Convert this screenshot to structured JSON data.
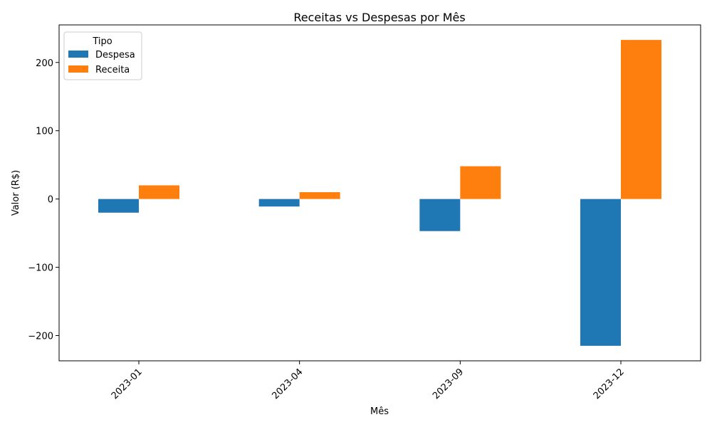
{
  "chart_data": {
    "type": "bar",
    "title": "Receitas vs Despesas por Mês",
    "xlabel": "Mês",
    "ylabel": "Valor (R$)",
    "categories": [
      "2023-01",
      "2023-04",
      "2023-09",
      "2023-12"
    ],
    "series": [
      {
        "name": "Despesa",
        "color": "#1f77b4",
        "values": [
          -20,
          -11,
          -47,
          -215
        ]
      },
      {
        "name": "Receita",
        "color": "#ff7f0e",
        "values": [
          20,
          10,
          48,
          233
        ]
      }
    ],
    "ylim": [
      -237,
      255
    ],
    "yticks": [
      -200,
      -100,
      0,
      100,
      200
    ],
    "ytick_labels": [
      "−200",
      "−100",
      "0",
      "100",
      "200"
    ],
    "legend": {
      "title": "Tipo",
      "position": "top-left"
    },
    "grid": false
  }
}
